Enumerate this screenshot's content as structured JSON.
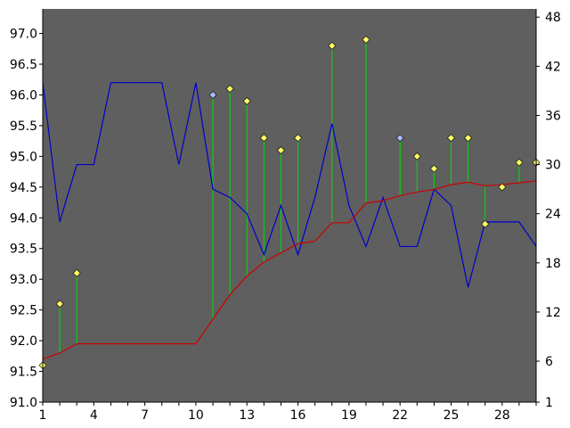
{
  "chart_data": {
    "type": "line",
    "title": "",
    "xlabel": "",
    "ylabel": "",
    "y2label": "",
    "grid": false,
    "colors": {
      "plot_background": "#5f5f5f",
      "blue_series": "#0000cc",
      "red_series": "#cc0000",
      "stem": "#00e000",
      "marker_yellow": "#ffff66",
      "marker_blue": "#aabbff"
    },
    "x": [
      1,
      2,
      3,
      4,
      5,
      6,
      7,
      8,
      9,
      10,
      11,
      12,
      13,
      14,
      15,
      16,
      17,
      18,
      19,
      20,
      21,
      22,
      23,
      24,
      25,
      26,
      27,
      28,
      29,
      30
    ],
    "xlim": [
      1,
      30
    ],
    "xticks": [
      1,
      4,
      7,
      10,
      13,
      16,
      19,
      22,
      25,
      28
    ],
    "ylim_left": [
      91.0,
      97.4
    ],
    "yticks_left": [
      "91.0",
      "91.5",
      "92.0",
      "92.5",
      "93.0",
      "93.5",
      "94.0",
      "94.5",
      "95.0",
      "95.5",
      "96.0",
      "96.5",
      "97.0"
    ],
    "ylim_right": [
      1,
      49
    ],
    "yticks_right": [
      1,
      6,
      12,
      18,
      24,
      30,
      36,
      42,
      48
    ],
    "series": [
      {
        "axis": "left",
        "values": [
          91.6,
          92.6,
          93.1,
          null,
          null,
          null,
          null,
          null,
          null,
          null,
          96.0,
          96.1,
          95.9,
          95.3,
          95.1,
          95.3,
          null,
          96.8,
          null,
          96.9,
          null,
          95.3,
          95.0,
          94.8,
          95.3,
          95.3,
          93.9,
          94.5,
          94.9,
          94.9
        ],
        "marker_colors": [
          "yellow",
          "yellow",
          "yellow",
          null,
          null,
          null,
          null,
          null,
          null,
          null,
          "blue",
          "yellow",
          "yellow",
          "yellow",
          "yellow",
          "yellow",
          null,
          "yellow",
          null,
          "yellow",
          null,
          "blue",
          "yellow",
          "yellow",
          "yellow",
          "yellow",
          "yellow",
          "yellow",
          "yellow",
          "yellow"
        ]
      },
      {
        "axis": "left",
        "values": [
          91.7,
          91.8,
          91.95,
          91.95,
          91.95,
          91.95,
          91.95,
          91.95,
          91.95,
          91.95,
          92.35,
          92.75,
          93.05,
          93.28,
          93.43,
          93.58,
          93.62,
          93.92,
          93.92,
          94.24,
          94.28,
          94.36,
          94.42,
          94.46,
          94.54,
          94.58,
          94.52,
          94.54,
          94.57,
          94.6
        ]
      },
      {
        "axis": "right",
        "values": [
          40,
          23,
          30,
          30,
          40,
          40,
          40,
          40,
          30,
          40,
          27,
          26,
          24,
          19,
          25,
          19,
          26,
          35,
          25,
          20,
          26,
          20,
          20,
          27,
          25,
          15,
          23,
          23,
          23,
          20
        ]
      }
    ]
  }
}
